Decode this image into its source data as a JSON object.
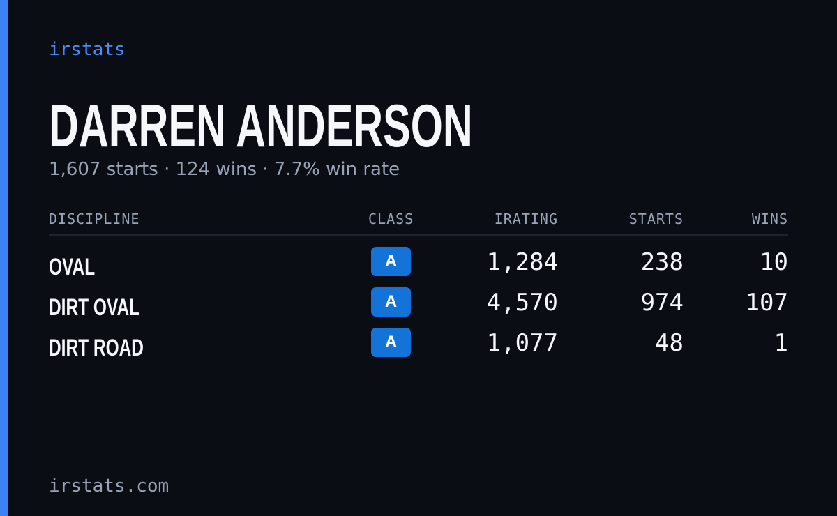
{
  "brand": "irstats",
  "name": "DARREN ANDERSON",
  "summary": "1,607 starts · 124 wins · 7.7% win rate",
  "table": {
    "headers": [
      "DISCIPLINE",
      "CLASS",
      "IRATING",
      "STARTS",
      "WINS"
    ],
    "rows": [
      [
        "OVAL",
        "A",
        "1,284",
        "238",
        "10"
      ],
      [
        "DIRT OVAL",
        "A",
        "4,570",
        "974",
        "107"
      ],
      [
        "DIRT ROAD",
        "A",
        "1,077",
        "48",
        "1"
      ]
    ]
  },
  "footer": "irstats.com"
}
